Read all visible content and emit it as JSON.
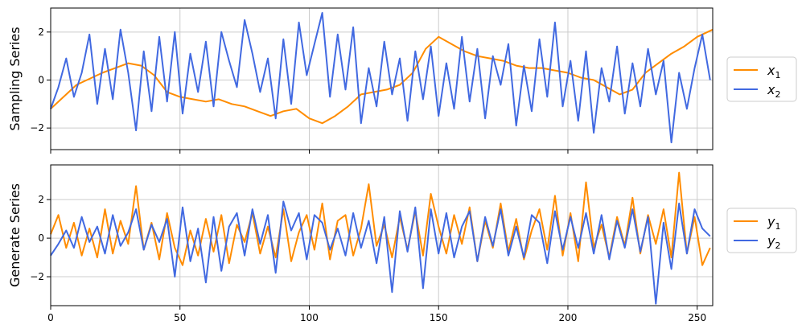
{
  "chart_data": [
    {
      "type": "line",
      "ylabel": "Sampling Series",
      "xlabel": "",
      "xlim": [
        0,
        256
      ],
      "ylim": [
        -2.9,
        3.0
      ],
      "xticks": [
        0,
        50,
        100,
        150,
        200,
        250
      ],
      "yticks": [
        -2,
        0,
        2
      ],
      "grid": true,
      "legend_position": "right",
      "series": [
        {
          "name": "x",
          "sub": "1",
          "color": "#ff8c00",
          "x": [
            0,
            10,
            20,
            25,
            30,
            35,
            40,
            45,
            50,
            55,
            60,
            65,
            70,
            75,
            80,
            85,
            90,
            95,
            100,
            105,
            110,
            115,
            120,
            125,
            130,
            135,
            140,
            145,
            150,
            155,
            160,
            165,
            170,
            175,
            180,
            185,
            190,
            195,
            200,
            205,
            210,
            215,
            220,
            225,
            230,
            235,
            240,
            245,
            250,
            256
          ],
          "values": [
            -1.2,
            -0.2,
            0.3,
            0.5,
            0.7,
            0.6,
            0.2,
            -0.5,
            -0.7,
            -0.8,
            -0.9,
            -0.8,
            -1.0,
            -1.1,
            -1.3,
            -1.5,
            -1.3,
            -1.2,
            -1.6,
            -1.8,
            -1.5,
            -1.1,
            -0.6,
            -0.5,
            -0.4,
            -0.2,
            0.3,
            1.3,
            1.8,
            1.5,
            1.2,
            1.0,
            0.9,
            0.8,
            0.6,
            0.5,
            0.5,
            0.4,
            0.3,
            0.1,
            0.0,
            -0.3,
            -0.6,
            -0.4,
            0.3,
            0.7,
            1.1,
            1.4,
            1.8,
            2.1
          ]
        },
        {
          "name": "x",
          "sub": "2",
          "color": "#4169e1",
          "x": [
            0,
            3,
            6,
            9,
            12,
            15,
            18,
            21,
            24,
            27,
            30,
            33,
            36,
            39,
            42,
            45,
            48,
            51,
            54,
            57,
            60,
            63,
            66,
            69,
            72,
            75,
            78,
            81,
            84,
            87,
            90,
            93,
            96,
            99,
            102,
            105,
            108,
            111,
            114,
            117,
            120,
            123,
            126,
            129,
            132,
            135,
            138,
            141,
            144,
            147,
            150,
            153,
            156,
            159,
            162,
            165,
            168,
            171,
            174,
            177,
            180,
            183,
            186,
            189,
            192,
            195,
            198,
            201,
            204,
            207,
            210,
            213,
            216,
            219,
            222,
            225,
            228,
            231,
            234,
            237,
            240,
            243,
            246,
            249,
            252,
            255
          ],
          "values": [
            -1.2,
            -0.3,
            0.9,
            -0.7,
            0.3,
            1.9,
            -1.0,
            1.3,
            -0.8,
            2.1,
            0.3,
            -2.1,
            1.2,
            -1.3,
            1.8,
            -0.9,
            2.0,
            -1.4,
            1.1,
            -0.5,
            1.6,
            -1.1,
            2.0,
            0.8,
            -0.3,
            2.5,
            1.1,
            -0.5,
            0.9,
            -1.6,
            1.7,
            -1.0,
            2.4,
            0.2,
            1.5,
            2.8,
            -0.7,
            1.9,
            -0.4,
            2.2,
            -1.8,
            0.5,
            -1.1,
            1.6,
            -0.6,
            0.9,
            -1.7,
            1.2,
            -0.8,
            1.4,
            -1.5,
            0.7,
            -1.2,
            1.8,
            -0.9,
            1.3,
            -1.6,
            1.0,
            -0.2,
            1.5,
            -1.9,
            0.6,
            -1.3,
            1.7,
            -0.7,
            2.4,
            -1.1,
            0.8,
            -1.7,
            1.2,
            -2.2,
            0.5,
            -0.9,
            1.4,
            -1.4,
            0.7,
            -1.1,
            1.3,
            -0.6,
            0.8,
            -2.6,
            0.3,
            -1.2,
            0.5,
            1.9,
            0.0
          ]
        }
      ]
    },
    {
      "type": "line",
      "ylabel": "Generate Series",
      "xlabel": "",
      "xlim": [
        0,
        256
      ],
      "ylim": [
        -3.5,
        3.8
      ],
      "xticks": [
        0,
        50,
        100,
        150,
        200,
        250
      ],
      "yticks": [
        -2,
        0,
        2
      ],
      "grid": true,
      "legend_position": "right",
      "series": [
        {
          "name": "y",
          "sub": "1",
          "color": "#ff8c00",
          "x": [
            0,
            3,
            6,
            9,
            12,
            15,
            18,
            21,
            24,
            27,
            30,
            33,
            36,
            39,
            42,
            45,
            48,
            51,
            54,
            57,
            60,
            63,
            66,
            69,
            72,
            75,
            78,
            81,
            84,
            87,
            90,
            93,
            96,
            99,
            102,
            105,
            108,
            111,
            114,
            117,
            120,
            123,
            126,
            129,
            132,
            135,
            138,
            141,
            144,
            147,
            150,
            153,
            156,
            159,
            162,
            165,
            168,
            171,
            174,
            177,
            180,
            183,
            186,
            189,
            192,
            195,
            198,
            201,
            204,
            207,
            210,
            213,
            216,
            219,
            222,
            225,
            228,
            231,
            234,
            237,
            240,
            243,
            246,
            249,
            252,
            255
          ],
          "values": [
            0.2,
            1.2,
            -0.5,
            0.8,
            -0.9,
            0.5,
            -1.0,
            1.5,
            -0.8,
            0.9,
            -0.3,
            2.7,
            -0.6,
            0.8,
            -1.1,
            1.3,
            -0.5,
            -1.4,
            0.4,
            -0.9,
            1.0,
            -0.7,
            1.2,
            -1.3,
            0.7,
            -0.2,
            1.3,
            -0.8,
            0.6,
            -1.0,
            1.5,
            -1.2,
            0.3,
            1.2,
            -0.6,
            1.8,
            -1.1,
            0.9,
            1.2,
            -0.9,
            0.5,
            2.8,
            -0.4,
            0.7,
            -1.0,
            1.1,
            -0.6,
            1.4,
            -0.9,
            2.3,
            0.6,
            -0.8,
            1.2,
            -0.3,
            1.6,
            -1.2,
            0.9,
            -0.5,
            1.8,
            -0.7,
            1.0,
            -1.1,
            0.4,
            1.5,
            -0.6,
            2.2,
            -0.9,
            1.3,
            -1.2,
            2.9,
            -0.5,
            0.7,
            -1.0,
            1.1,
            -0.4,
            2.1,
            -0.8,
            1.2,
            -0.3,
            1.5,
            -1.0,
            3.4,
            -0.8,
            1.1,
            -1.4,
            -0.5
          ]
        },
        {
          "name": "y",
          "sub": "2",
          "color": "#4169e1",
          "x": [
            0,
            3,
            6,
            9,
            12,
            15,
            18,
            21,
            24,
            27,
            30,
            33,
            36,
            39,
            42,
            45,
            48,
            51,
            54,
            57,
            60,
            63,
            66,
            69,
            72,
            75,
            78,
            81,
            84,
            87,
            90,
            93,
            96,
            99,
            102,
            105,
            108,
            111,
            114,
            117,
            120,
            123,
            126,
            129,
            132,
            135,
            138,
            141,
            144,
            147,
            150,
            153,
            156,
            159,
            162,
            165,
            168,
            171,
            174,
            177,
            180,
            183,
            186,
            189,
            192,
            195,
            198,
            201,
            204,
            207,
            210,
            213,
            216,
            219,
            222,
            225,
            228,
            231,
            234,
            237,
            240,
            243,
            246,
            249,
            252,
            255
          ],
          "values": [
            -0.9,
            -0.3,
            0.4,
            -0.5,
            1.1,
            -0.2,
            0.6,
            -0.8,
            1.2,
            -0.4,
            0.3,
            1.5,
            -0.6,
            0.7,
            -0.2,
            1.0,
            -2.0,
            1.6,
            -1.2,
            0.5,
            -2.3,
            1.1,
            -1.7,
            0.6,
            1.3,
            -0.9,
            1.5,
            -0.3,
            1.2,
            -1.8,
            1.9,
            0.4,
            1.3,
            -1.1,
            1.2,
            0.8,
            -0.6,
            0.5,
            -0.9,
            1.3,
            -0.5,
            0.9,
            -1.3,
            1.1,
            -2.8,
            1.4,
            -0.7,
            1.6,
            -2.6,
            1.5,
            -0.8,
            1.3,
            -1.0,
            0.6,
            1.4,
            -1.2,
            1.1,
            -0.4,
            1.5,
            -0.9,
            0.6,
            -1.0,
            1.2,
            0.8,
            -1.3,
            1.4,
            -0.6,
            1.1,
            -0.5,
            1.3,
            -0.8,
            1.2,
            -1.1,
            0.9,
            -0.5,
            1.5,
            -0.7,
            1.1,
            -3.4,
            0.8,
            -1.6,
            1.8,
            -0.8,
            1.5,
            0.5,
            0.1
          ]
        }
      ]
    }
  ]
}
